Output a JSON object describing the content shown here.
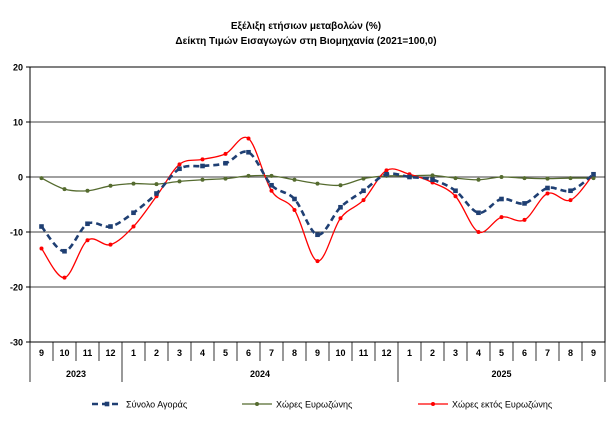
{
  "chart_data": {
    "type": "line",
    "title": "Εξέλιξη ετήσιων μεταβολών (%)",
    "subtitle": "Δείκτη Τιμών Εισαγωγών στη Βιομηχανία (2021=100,0)",
    "xlabel": "",
    "ylabel": "",
    "ylim": [
      -30,
      20
    ],
    "yticks": [
      "20",
      "10",
      "0",
      "-10",
      "-20",
      "-30"
    ],
    "ytick_values": [
      20,
      10,
      0,
      -10,
      -20,
      -30
    ],
    "grid": true,
    "legend_position": "bottom",
    "categories": [
      "9",
      "10",
      "11",
      "12",
      "1",
      "2",
      "3",
      "4",
      "5",
      "6",
      "7",
      "8",
      "9",
      "10",
      "11",
      "12",
      "1",
      "2",
      "3",
      "4",
      "5",
      "6",
      "7",
      "8",
      "9"
    ],
    "year_groups": [
      {
        "label": "2023",
        "start": 0,
        "end": 3
      },
      {
        "label": "2024",
        "start": 4,
        "end": 15
      },
      {
        "label": "2025",
        "start": 16,
        "end": 24
      }
    ],
    "series": [
      {
        "name": "Σύνολο Αγοράς",
        "color": "#1f3f73",
        "style": "dashed-square",
        "values": [
          -9.0,
          -13.5,
          -8.5,
          -9.0,
          -6.5,
          -3.0,
          1.5,
          2.0,
          2.5,
          4.5,
          -1.5,
          -4.0,
          -10.5,
          -5.5,
          -2.5,
          0.5,
          0.0,
          -0.5,
          -2.5,
          -6.5,
          -4.0,
          -4.8,
          -2.0,
          -2.5,
          0.5
        ]
      },
      {
        "name": "Χώρες Ευρωζώνης",
        "color": "#556b2f",
        "style": "solid-dot",
        "values": [
          -0.2,
          -2.2,
          -2.5,
          -1.6,
          -1.2,
          -1.3,
          -0.8,
          -0.5,
          -0.3,
          0.2,
          0.2,
          -0.5,
          -1.2,
          -1.5,
          -0.3,
          0.2,
          0.2,
          0.3,
          -0.2,
          -0.5,
          0.0,
          -0.2,
          -0.3,
          -0.2,
          -0.2
        ]
      },
      {
        "name": "Χώρες εκτός Ευρωζώνης",
        "color": "#ff0000",
        "style": "solid-dot",
        "values": [
          -13.0,
          -18.3,
          -11.5,
          -12.3,
          -9.0,
          -3.5,
          2.3,
          3.2,
          4.2,
          7.0,
          -2.5,
          -6.0,
          -15.3,
          -7.5,
          -4.2,
          1.2,
          0.5,
          -1.0,
          -3.5,
          -10.0,
          -7.3,
          -7.8,
          -3.0,
          -4.2,
          0.5
        ]
      }
    ]
  }
}
